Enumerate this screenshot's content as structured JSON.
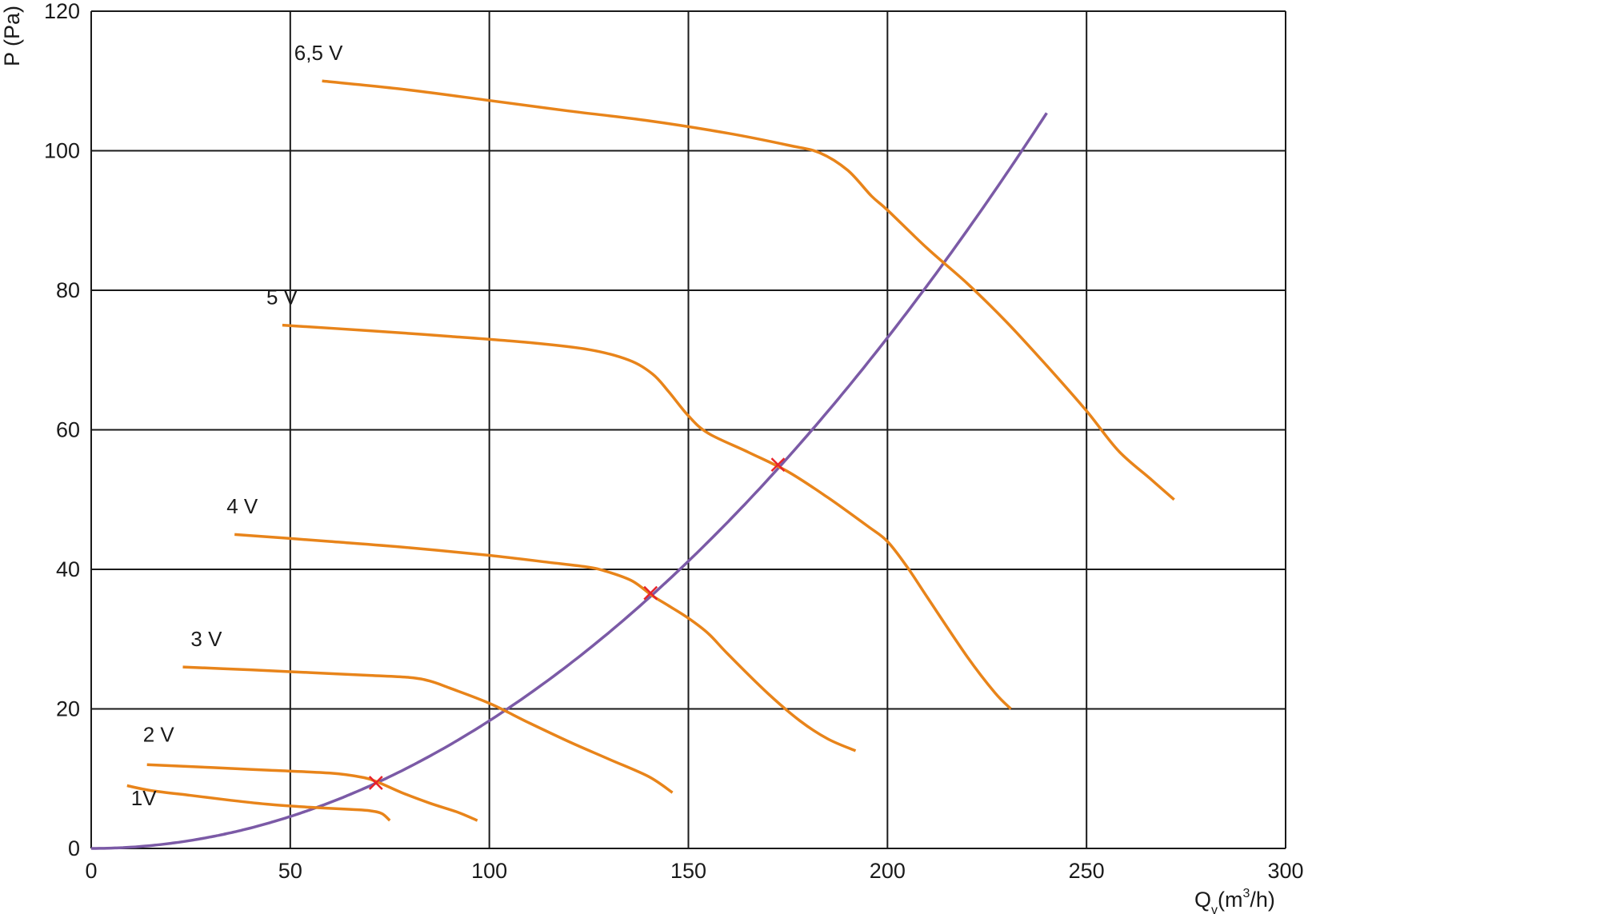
{
  "chart_data": {
    "type": "line",
    "title": "",
    "xlabel": {
      "main": "Q",
      "sub": "v",
      "unit_pre": "(m",
      "sup": "3",
      "unit_post": "/h)"
    },
    "ylabel": "P (Pa)",
    "xlim": [
      0,
      300
    ],
    "ylim": [
      0,
      120
    ],
    "xticks": [
      0,
      50,
      100,
      150,
      200,
      250,
      300
    ],
    "yticks": [
      0,
      20,
      40,
      60,
      80,
      100,
      120
    ],
    "grid": true,
    "colors": {
      "fan_curves": "#e8841a",
      "system_curve": "#7b5aa6",
      "operating_point": "#e8232a",
      "grid": "#1a1a1a"
    },
    "series": [
      {
        "name": "6,5 V",
        "label_at": [
          51,
          113
        ],
        "points": [
          [
            58,
            110
          ],
          [
            80,
            108.7
          ],
          [
            100,
            107.2
          ],
          [
            120,
            105.7
          ],
          [
            140,
            104.3
          ],
          [
            160,
            102.5
          ],
          [
            175,
            100.8
          ],
          [
            183,
            99.7
          ],
          [
            190,
            97.2
          ],
          [
            196,
            93.5
          ],
          [
            200,
            91.5
          ],
          [
            210,
            86
          ],
          [
            220,
            81
          ],
          [
            230,
            75.4
          ],
          [
            240,
            69.2
          ],
          [
            250,
            62.7
          ],
          [
            258,
            57
          ],
          [
            266,
            53
          ],
          [
            272,
            50
          ]
        ]
      },
      {
        "name": "5 V",
        "label_at": [
          44,
          78
        ],
        "points": [
          [
            48,
            75
          ],
          [
            70,
            74.2
          ],
          [
            90,
            73.4
          ],
          [
            110,
            72.5
          ],
          [
            125,
            71.5
          ],
          [
            135,
            70
          ],
          [
            141,
            68
          ],
          [
            145,
            65.5
          ],
          [
            150,
            62
          ],
          [
            155,
            59.5
          ],
          [
            165,
            56.8
          ],
          [
            175,
            54
          ],
          [
            185,
            50.3
          ],
          [
            195,
            46.2
          ],
          [
            200,
            44
          ],
          [
            205,
            40.3
          ],
          [
            210,
            36
          ],
          [
            220,
            27.5
          ],
          [
            227,
            22.3
          ],
          [
            231,
            20
          ]
        ]
      },
      {
        "name": "4 V",
        "label_at": [
          34,
          48
        ],
        "points": [
          [
            36,
            45
          ],
          [
            60,
            44
          ],
          [
            80,
            43.1
          ],
          [
            100,
            42
          ],
          [
            115,
            41
          ],
          [
            125,
            40.3
          ],
          [
            130,
            39.6
          ],
          [
            136,
            38.3
          ],
          [
            141,
            36.2
          ],
          [
            145,
            34.8
          ],
          [
            150,
            33
          ],
          [
            155,
            30.8
          ],
          [
            160,
            27.8
          ],
          [
            170,
            22.2
          ],
          [
            178,
            18.3
          ],
          [
            185,
            15.7
          ],
          [
            192,
            14
          ]
        ]
      },
      {
        "name": "3 V",
        "label_at": [
          25,
          29
        ],
        "points": [
          [
            23,
            26
          ],
          [
            40,
            25.6
          ],
          [
            55,
            25.2
          ],
          [
            70,
            24.8
          ],
          [
            80,
            24.5
          ],
          [
            85,
            24
          ],
          [
            90,
            23
          ],
          [
            100,
            20.8
          ],
          [
            110,
            18
          ],
          [
            120,
            15.3
          ],
          [
            130,
            12.8
          ],
          [
            140,
            10.3
          ],
          [
            146,
            8
          ]
        ]
      },
      {
        "name": "2 V",
        "label_at": [
          13,
          15.3
        ],
        "points": [
          [
            14,
            12
          ],
          [
            30,
            11.6
          ],
          [
            45,
            11.2
          ],
          [
            60,
            10.8
          ],
          [
            68,
            10.2
          ],
          [
            72,
            9.5
          ],
          [
            78,
            8
          ],
          [
            85,
            6.5
          ],
          [
            92,
            5.2
          ],
          [
            97,
            4
          ]
        ]
      },
      {
        "name": "1V",
        "label_at": [
          10,
          6.2
        ],
        "points": [
          [
            9,
            9
          ],
          [
            15,
            8.3
          ],
          [
            25,
            7.6
          ],
          [
            35,
            6.9
          ],
          [
            45,
            6.3
          ],
          [
            55,
            5.9
          ],
          [
            65,
            5.6
          ],
          [
            70,
            5.4
          ],
          [
            73,
            5
          ],
          [
            75,
            4
          ]
        ]
      }
    ],
    "system_curve": {
      "type": "quadratic",
      "formula": "P = k * Q^2",
      "k": 0.00183,
      "x_range": [
        0,
        240
      ]
    },
    "operating_points": [
      {
        "x": 71.5,
        "y": 9.4
      },
      {
        "x": 140.5,
        "y": 36.6
      },
      {
        "x": 172.5,
        "y": 55
      }
    ]
  }
}
